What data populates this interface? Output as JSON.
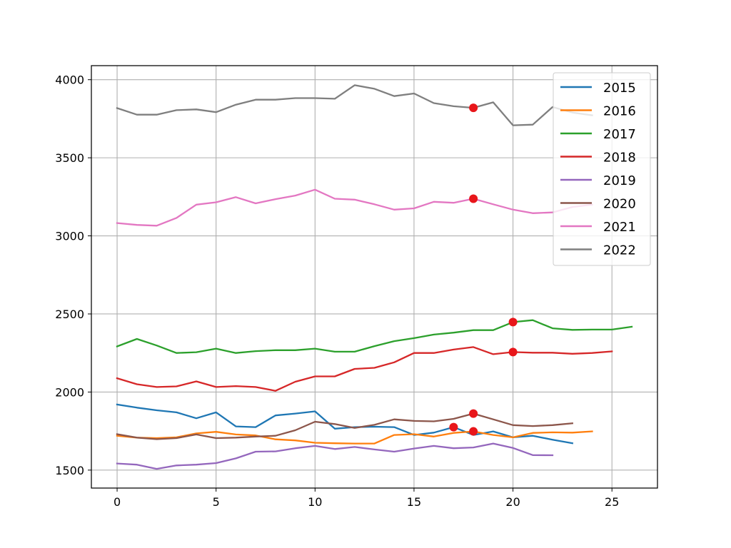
{
  "chart_data": {
    "type": "line",
    "title": "",
    "xlabel": "",
    "ylabel": "",
    "xlim": [
      -1.3,
      27.3
    ],
    "ylim": [
      1385,
      4090
    ],
    "xticks": [
      0,
      5,
      10,
      15,
      20,
      25
    ],
    "yticks": [
      1500,
      2000,
      2500,
      3000,
      3500,
      4000
    ],
    "grid": true,
    "legend_placement": "top-right",
    "series": [
      {
        "name": "2015",
        "color": "#1f77b4",
        "values": [
          1920,
          1900,
          1883,
          1870,
          1832,
          1870,
          1780,
          1775,
          1850,
          1862,
          1876,
          1765,
          1775,
          1778,
          1775,
          1725,
          1740,
          1775,
          1725,
          1748,
          1710,
          1720,
          1695,
          1672
        ]
      },
      {
        "name": "2016",
        "color": "#ff7f0e",
        "values": [
          1720,
          1708,
          1705,
          1710,
          1735,
          1745,
          1728,
          1722,
          1697,
          1690,
          1675,
          1672,
          1670,
          1670,
          1725,
          1730,
          1715,
          1738,
          1748,
          1725,
          1710,
          1738,
          1742,
          1740,
          1748
        ]
      },
      {
        "name": "2017",
        "color": "#2ca02c",
        "values": [
          2292,
          2340,
          2298,
          2250,
          2255,
          2278,
          2250,
          2262,
          2268,
          2268,
          2278,
          2258,
          2258,
          2294,
          2326,
          2345,
          2368,
          2380,
          2396,
          2396,
          2448,
          2460,
          2408,
          2398,
          2400,
          2400,
          2418
        ]
      },
      {
        "name": "2018",
        "color": "#d62728",
        "values": [
          2088,
          2050,
          2032,
          2036,
          2068,
          2032,
          2038,
          2032,
          2008,
          2066,
          2100,
          2100,
          2148,
          2155,
          2190,
          2250,
          2250,
          2272,
          2288,
          2242,
          2256,
          2252,
          2252,
          2245,
          2250,
          2260
        ]
      },
      {
        "name": "2019",
        "color": "#9467bd",
        "values": [
          1542,
          1535,
          1508,
          1530,
          1535,
          1545,
          1575,
          1618,
          1620,
          1640,
          1655,
          1635,
          1648,
          1632,
          1618,
          1638,
          1655,
          1640,
          1645,
          1670,
          1642,
          1596,
          1595
        ]
      },
      {
        "name": "2020",
        "color": "#8c564b",
        "values": [
          1730,
          1708,
          1698,
          1705,
          1728,
          1705,
          1708,
          1715,
          1720,
          1755,
          1810,
          1795,
          1770,
          1790,
          1825,
          1815,
          1812,
          1828,
          1862,
          1825,
          1788,
          1782,
          1788,
          1800
        ]
      },
      {
        "name": "2021",
        "color": "#e377c2",
        "values": [
          3082,
          3070,
          3065,
          3115,
          3200,
          3215,
          3248,
          3208,
          3235,
          3258,
          3296,
          3238,
          3232,
          3202,
          3168,
          3176,
          3218,
          3212,
          3238,
          3202,
          3168,
          3145,
          3150,
          3185,
          3200
        ]
      },
      {
        "name": "2022",
        "color": "#7f7f7f",
        "values": [
          3818,
          3776,
          3776,
          3805,
          3810,
          3792,
          3840,
          3872,
          3872,
          3882,
          3882,
          3878,
          3965,
          3942,
          3895,
          3912,
          3850,
          3830,
          3820,
          3855,
          3708,
          3712,
          3825,
          3790,
          3772
        ]
      }
    ],
    "highlight_points": [
      {
        "series": "2015",
        "x": 17,
        "y": 1775
      },
      {
        "series": "2016",
        "x": 18,
        "y": 1748
      },
      {
        "series": "2017",
        "x": 20,
        "y": 2448
      },
      {
        "series": "2018",
        "x": 20,
        "y": 2256
      },
      {
        "series": "2020",
        "x": 18,
        "y": 1862
      },
      {
        "series": "2021",
        "x": 18,
        "y": 3238
      },
      {
        "series": "2022",
        "x": 18,
        "y": 3820
      }
    ],
    "highlight_color": "#e8161a"
  }
}
